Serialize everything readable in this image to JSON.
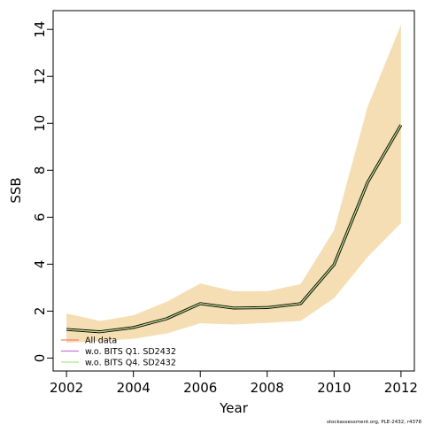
{
  "chart_data": {
    "type": "line",
    "xlabel": "Year",
    "ylabel": "SSB",
    "xlim": [
      2001.6,
      2012.4
    ],
    "ylim": [
      -0.55,
      14.8
    ],
    "xticks": [
      2002,
      2004,
      2006,
      2008,
      2010,
      2012
    ],
    "xtick_labels": [
      "2002",
      "2004",
      "2006",
      "2008",
      "2010",
      "2012"
    ],
    "yticks": [
      0,
      2,
      4,
      6,
      8,
      10,
      12,
      14
    ],
    "ytick_labels": [
      "0",
      "2",
      "4",
      "6",
      "8",
      "10",
      "12",
      "14"
    ],
    "grid": false,
    "legend_position": "bottom-left",
    "x": [
      2002,
      2003,
      2004,
      2005,
      2006,
      2007,
      2008,
      2009,
      2010,
      2011,
      2012
    ],
    "band": {
      "color": "#f5deb3",
      "lower": [
        0.65,
        0.72,
        0.82,
        1.05,
        1.48,
        1.43,
        1.5,
        1.58,
        2.55,
        4.3,
        5.75
      ],
      "upper": [
        1.9,
        1.58,
        1.82,
        2.4,
        3.18,
        2.85,
        2.85,
        3.15,
        5.45,
        10.7,
        14.2
      ]
    },
    "estimate": {
      "color": "#000000",
      "values": [
        1.22,
        1.12,
        1.3,
        1.68,
        2.32,
        2.13,
        2.15,
        2.32,
        3.98,
        7.48,
        9.93
      ]
    },
    "series": [
      {
        "name": "All data",
        "color": "#f08070",
        "values": [
          1.22,
          1.12,
          1.3,
          1.68,
          2.32,
          2.13,
          2.15,
          2.32,
          3.98,
          7.48,
          9.93
        ]
      },
      {
        "name": "w.o. BITS Q1. SD2432",
        "color": "#c77cc7",
        "values": [
          1.22,
          1.12,
          1.3,
          1.68,
          2.32,
          2.13,
          2.15,
          2.32,
          3.98,
          7.48,
          9.93
        ]
      },
      {
        "name": "w.o. BITS Q4. SD2432",
        "color": "#b0e57c",
        "values": [
          1.22,
          1.12,
          1.3,
          1.68,
          2.32,
          2.13,
          2.15,
          2.32,
          3.98,
          7.48,
          9.93
        ]
      }
    ]
  },
  "credit": "stockassessment.org, PLE-2432, r4378"
}
